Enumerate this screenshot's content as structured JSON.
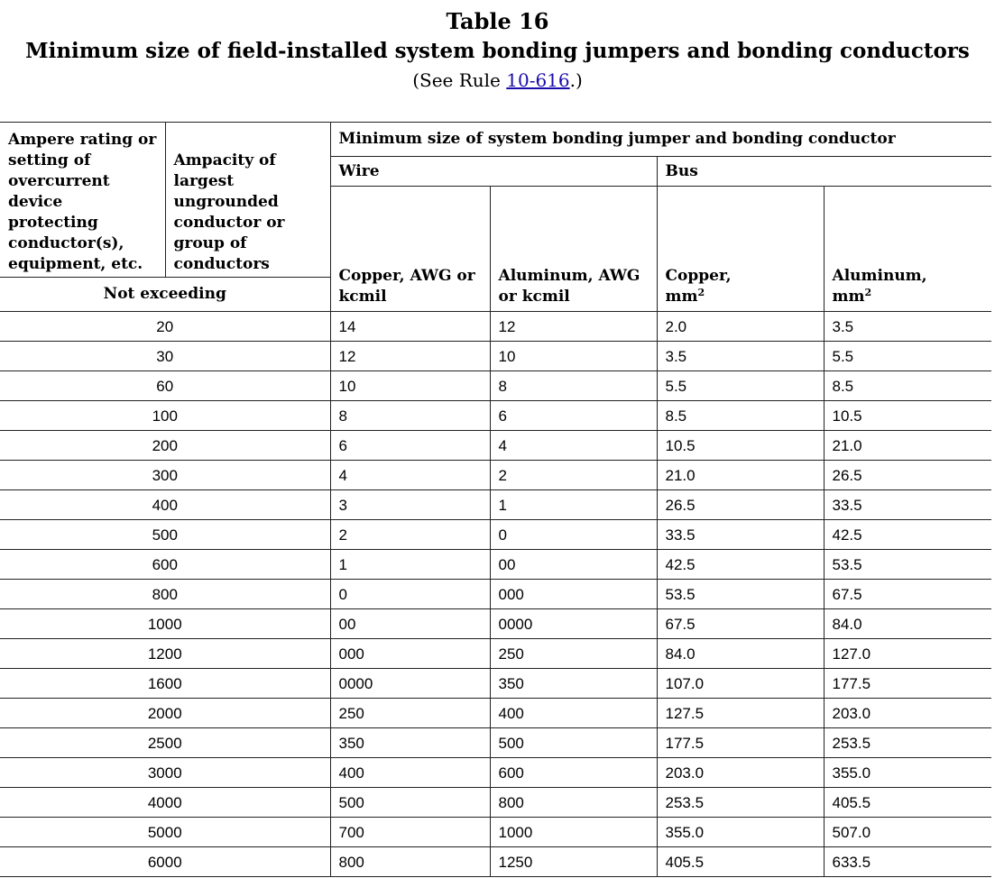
{
  "title": {
    "line1": "Table 16",
    "line2": "Minimum size of field-installed system bonding jumpers and bonding conductors",
    "see_prefix": "(See Rule ",
    "see_link": "10-616",
    "see_suffix": ".)"
  },
  "headers": {
    "col1": "Ampere rating or setting of overcurrent device protecting conductor(s), equipment, etc.",
    "col2": "Ampacity of largest ungrounded conductor or group of conductors",
    "not_exceeding": "Not exceeding",
    "main": "Minimum size of system bonding jumper and bonding conductor",
    "wire": "Wire",
    "bus": "Bus",
    "copper_wire": "Copper, AWG or kcmil",
    "aluminum_wire": "Aluminum, AWG or kcmil",
    "copper_bus_prefix": "Copper,",
    "aluminum_bus_prefix": "Aluminum,",
    "unit_mm": "mm",
    "unit_sup": "2"
  },
  "rows": [
    [
      "20",
      "14",
      "12",
      "2.0",
      "3.5"
    ],
    [
      "30",
      "12",
      "10",
      "3.5",
      "5.5"
    ],
    [
      "60",
      "10",
      "8",
      "5.5",
      "8.5"
    ],
    [
      "100",
      "8",
      "6",
      "8.5",
      "10.5"
    ],
    [
      "200",
      "6",
      "4",
      "10.5",
      "21.0"
    ],
    [
      "300",
      "4",
      "2",
      "21.0",
      "26.5"
    ],
    [
      "400",
      "3",
      "1",
      "26.5",
      "33.5"
    ],
    [
      "500",
      "2",
      "0",
      "33.5",
      "42.5"
    ],
    [
      "600",
      "1",
      "00",
      "42.5",
      "53.5"
    ],
    [
      "800",
      "0",
      "000",
      "53.5",
      "67.5"
    ],
    [
      "1000",
      "00",
      "0000",
      "67.5",
      "84.0"
    ],
    [
      "1200",
      "000",
      "250",
      "84.0",
      "127.0"
    ],
    [
      "1600",
      "0000",
      "350",
      "107.0",
      "177.5"
    ],
    [
      "2000",
      "250",
      "400",
      "127.5",
      "203.0"
    ],
    [
      "2500",
      "350",
      "500",
      "177.5",
      "253.5"
    ],
    [
      "3000",
      "400",
      "600",
      "203.0",
      "355.0"
    ],
    [
      "4000",
      "500",
      "800",
      "253.5",
      "405.5"
    ],
    [
      "5000",
      "700",
      "1000",
      "355.0",
      "507.0"
    ],
    [
      "6000",
      "800",
      "1250",
      "405.5",
      "633.5"
    ]
  ]
}
